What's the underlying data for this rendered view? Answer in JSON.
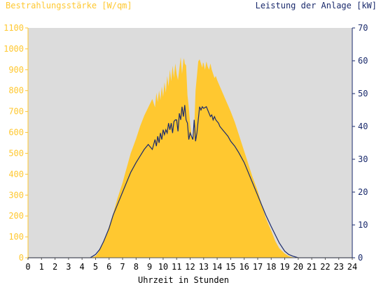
{
  "chart_data": {
    "type": "area",
    "title_left": "Bestrahlungsstärke [W/qm]",
    "title_right": "Leistung der Anlage [kW]",
    "xlabel": "Uhrzeit in Stunden",
    "x_ticks": [
      "0",
      "1",
      "2",
      "3",
      "4",
      "5",
      "6",
      "7",
      "8",
      "9",
      "10",
      "11",
      "12",
      "13",
      "14",
      "15",
      "16",
      "17",
      "18",
      "19",
      "20",
      "21",
      "22",
      "23",
      "24"
    ],
    "y_left_ticks": [
      "0",
      "100",
      "200",
      "300",
      "400",
      "500",
      "600",
      "700",
      "800",
      "900",
      "1000",
      "1100"
    ],
    "y_right_ticks": [
      "0",
      "10",
      "20",
      "30",
      "40",
      "50",
      "60",
      "70"
    ],
    "xlim": [
      0,
      24
    ],
    "ylim_left": [
      0,
      1100
    ],
    "ylim_right": [
      0,
      70
    ],
    "colors": {
      "irradiance": "#ffc830",
      "power": "#1a2a6c",
      "plot_bg": "#dcdcdc",
      "left_axis": "#ffc830",
      "right_axis": "#1a2a6c"
    },
    "series": [
      {
        "name": "Bestrahlungsstärke [W/qm]",
        "axis": "left",
        "kind": "area",
        "x": [
          0,
          4.6,
          5.0,
          5.2,
          5.5,
          5.8,
          6.0,
          6.3,
          6.6,
          7.0,
          7.3,
          7.6,
          8.0,
          8.3,
          8.6,
          8.9,
          9.2,
          9.4,
          9.5,
          9.6,
          9.7,
          9.8,
          9.9,
          10.0,
          10.1,
          10.2,
          10.3,
          10.4,
          10.5,
          10.6,
          10.7,
          10.8,
          10.9,
          11.0,
          11.1,
          11.2,
          11.3,
          11.4,
          11.5,
          11.55,
          11.6,
          11.7,
          11.8,
          11.9,
          12.0,
          12.1,
          12.2,
          12.3,
          12.4,
          12.5,
          12.6,
          12.7,
          12.8,
          12.9,
          12.95,
          13.0,
          13.1,
          13.2,
          13.3,
          13.4,
          13.5,
          13.6,
          13.7,
          13.8,
          13.9,
          14.0,
          14.2,
          14.4,
          14.6,
          14.8,
          15.0,
          15.3,
          15.6,
          16.0,
          16.3,
          16.6,
          17.0,
          17.3,
          17.6,
          18.0,
          18.3,
          18.6,
          19.0,
          19.3,
          19.6,
          19.8,
          20.0,
          20.2,
          20.4,
          24
        ],
        "values": [
          0,
          0,
          8,
          25,
          60,
          110,
          150,
          210,
          280,
          360,
          430,
          500,
          570,
          630,
          680,
          720,
          760,
          720,
          790,
          745,
          800,
          755,
          820,
          770,
          840,
          790,
          870,
          820,
          900,
          845,
          920,
          860,
          930,
          880,
          850,
          905,
          960,
          880,
          945,
          955,
          930,
          920,
          780,
          720,
          640,
          590,
          560,
          620,
          800,
          870,
          940,
          950,
          930,
          910,
          935,
          930,
          900,
          940,
          915,
          900,
          930,
          900,
          880,
          860,
          870,
          850,
          820,
          790,
          760,
          730,
          700,
          650,
          590,
          510,
          450,
          390,
          320,
          255,
          190,
          130,
          80,
          45,
          20,
          8,
          2,
          0,
          0,
          0,
          0,
          0
        ]
      },
      {
        "name": "Leistung der Anlage [kW]",
        "axis": "right",
        "kind": "line",
        "x": [
          0,
          4.6,
          5.0,
          5.3,
          5.6,
          6.0,
          6.3,
          6.6,
          7.0,
          7.3,
          7.6,
          8.0,
          8.3,
          8.6,
          8.9,
          9.0,
          9.2,
          9.4,
          9.5,
          9.6,
          9.7,
          9.8,
          9.9,
          10.0,
          10.1,
          10.2,
          10.3,
          10.4,
          10.5,
          10.6,
          10.7,
          10.8,
          10.9,
          11.0,
          11.1,
          11.2,
          11.3,
          11.4,
          11.5,
          11.6,
          11.7,
          11.8,
          11.9,
          12.0,
          12.1,
          12.2,
          12.3,
          12.4,
          12.5,
          12.6,
          12.7,
          12.8,
          12.9,
          13.0,
          13.2,
          13.4,
          13.5,
          13.6,
          13.7,
          13.8,
          13.9,
          14.0,
          14.1,
          14.2,
          14.4,
          14.6,
          14.8,
          15.0,
          15.3,
          15.6,
          16.0,
          16.3,
          16.6,
          17.0,
          17.3,
          17.6,
          18.0,
          18.3,
          18.6,
          19.0,
          19.3,
          19.6,
          20.0,
          20.3,
          24
        ],
        "values": [
          0,
          0,
          1,
          2.5,
          5,
          9,
          13,
          16,
          20,
          23,
          26,
          29,
          31,
          33,
          34.5,
          34,
          33,
          36,
          34,
          37,
          35,
          38,
          36,
          39,
          37.5,
          39,
          38,
          41,
          39,
          41,
          38,
          41.5,
          42,
          42,
          38.5,
          44,
          42,
          46,
          43,
          46.5,
          42,
          41,
          36,
          38,
          37,
          36,
          42,
          35.5,
          38,
          42,
          46,
          45,
          46,
          45.5,
          46,
          44,
          43,
          43.5,
          42,
          43,
          42,
          41.5,
          41,
          40,
          39,
          38,
          37,
          35.5,
          34,
          32,
          29,
          26,
          23,
          19,
          16,
          13,
          9.5,
          7,
          4.5,
          2,
          1,
          0.5,
          0,
          0,
          0
        ]
      }
    ]
  }
}
